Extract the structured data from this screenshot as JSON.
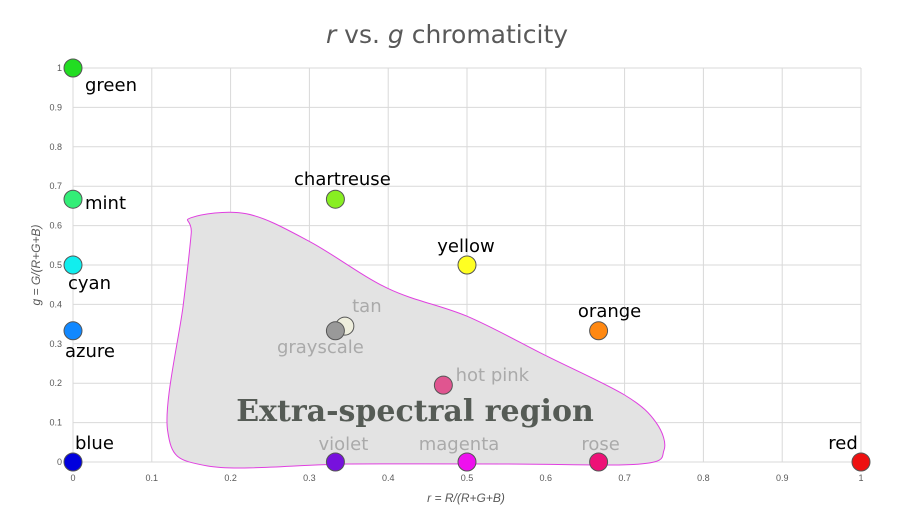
{
  "chart_data": {
    "type": "scatter",
    "title": "r vs. g chromaticity",
    "title_parts": {
      "r": "r",
      "mid": " vs. ",
      "g": "g",
      "rest": " chromaticity"
    },
    "xlabel": "r = R/(R+G+B)",
    "ylabel": "g = G/(R+G+B)",
    "xlim": [
      0,
      1
    ],
    "ylim": [
      0,
      1
    ],
    "xticks": [
      "0",
      "0.1",
      "0.2",
      "0.3",
      "0.4",
      "0.5",
      "0.6",
      "0.7",
      "0.8",
      "0.9",
      "1"
    ],
    "yticks": [
      "0",
      "0.1",
      "0.2",
      "0.3",
      "0.4",
      "0.5",
      "0.6",
      "0.7",
      "0.8",
      "0.9",
      "1"
    ],
    "grid": true,
    "region": {
      "label": "Extra-spectral region",
      "fill": "#e3e3e3",
      "stroke": "#e040e0",
      "outline": [
        [
          0.15,
          0.62
        ],
        [
          0.22,
          0.63
        ],
        [
          0.3,
          0.56
        ],
        [
          0.4,
          0.44
        ],
        [
          0.5,
          0.37
        ],
        [
          0.6,
          0.27
        ],
        [
          0.7,
          0.17
        ],
        [
          0.74,
          0.1
        ],
        [
          0.75,
          0.03
        ],
        [
          0.72,
          -0.005
        ],
        [
          0.55,
          -0.005
        ],
        [
          0.35,
          -0.005
        ],
        [
          0.17,
          -0.01
        ],
        [
          0.12,
          0.08
        ],
        [
          0.14,
          0.4
        ],
        [
          0.15,
          0.58
        ]
      ]
    },
    "points": [
      {
        "label": "green",
        "x": 0,
        "y": 1,
        "color": "#22dd22",
        "label_color": "#000000"
      },
      {
        "label": "mint",
        "x": 0,
        "y": 0.667,
        "color": "#33ee77",
        "label_color": "#000000"
      },
      {
        "label": "cyan",
        "x": 0,
        "y": 0.5,
        "color": "#11eeee",
        "label_color": "#000000"
      },
      {
        "label": "azure",
        "x": 0,
        "y": 0.333,
        "color": "#1188ff",
        "label_color": "#000000"
      },
      {
        "label": "blue",
        "x": 0,
        "y": 0,
        "color": "#0000dd",
        "label_color": "#000000"
      },
      {
        "label": "chartreuse",
        "x": 0.333,
        "y": 0.667,
        "color": "#88ee22",
        "label_color": "#000000"
      },
      {
        "label": "yellow",
        "x": 0.5,
        "y": 0.5,
        "color": "#ffff22",
        "label_color": "#000000"
      },
      {
        "label": "orange",
        "x": 0.667,
        "y": 0.333,
        "color": "#ff8811",
        "label_color": "#000000"
      },
      {
        "label": "red",
        "x": 1,
        "y": 0,
        "color": "#ee1111",
        "label_color": "#000000"
      },
      {
        "label": "tan",
        "x": 0.345,
        "y": 0.345,
        "color": "#eeeedd",
        "label_color": "#aaaaaa"
      },
      {
        "label": "grayscale",
        "x": 0.333,
        "y": 0.333,
        "color": "#999999",
        "label_color": "#aaaaaa"
      },
      {
        "label": "hot pink",
        "x": 0.47,
        "y": 0.195,
        "color": "#e05590",
        "label_color": "#aaaaaa"
      },
      {
        "label": "violet",
        "x": 0.333,
        "y": 0,
        "color": "#7711dd",
        "label_color": "#aaaaaa"
      },
      {
        "label": "magenta",
        "x": 0.5,
        "y": 0,
        "color": "#ee11ee",
        "label_color": "#aaaaaa"
      },
      {
        "label": "rose",
        "x": 0.667,
        "y": 0,
        "color": "#ee1177",
        "label_color": "#aaaaaa"
      }
    ]
  }
}
